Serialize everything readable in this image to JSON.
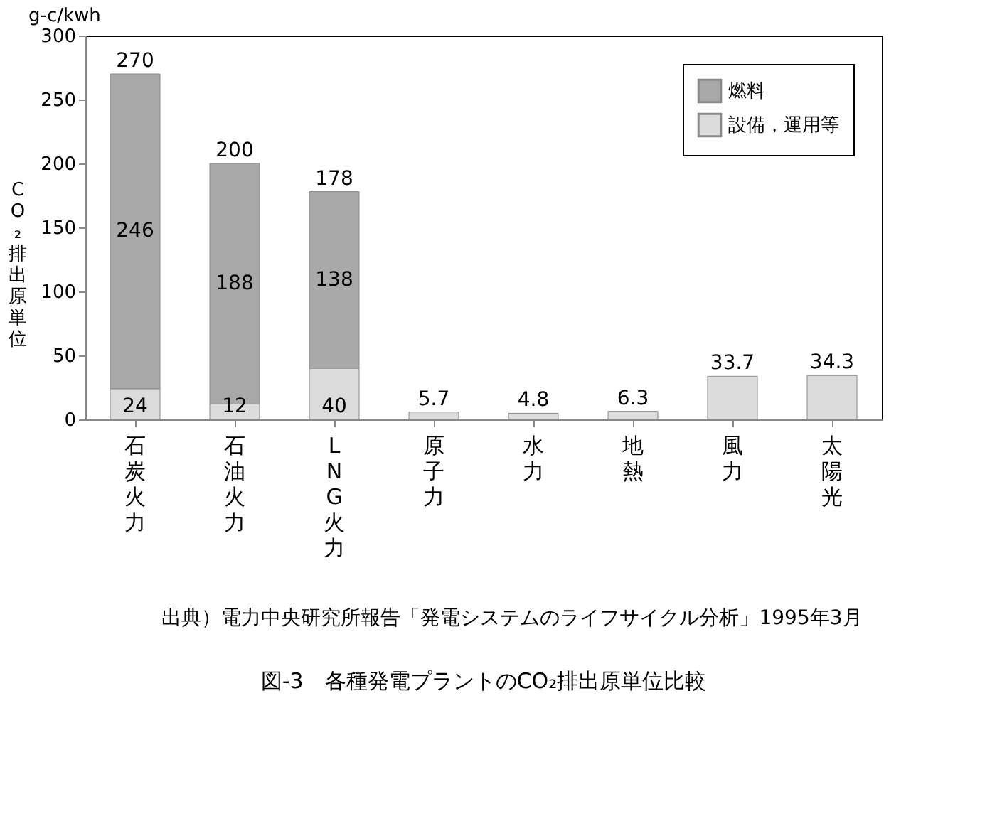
{
  "chart_data": {
    "type": "bar",
    "title": "図-3　各種発電プラントのCO₂排出原単位比較",
    "ylabel": "CO₂排出原単位",
    "annotations": [
      "g-c/kwh",
      "出典）電力中央研究所報告「発電システムのライフサイクル分析」1995年3月"
    ],
    "categories": [
      "石炭火力",
      "石油火力",
      "LNG火力",
      "原子力",
      "水力",
      "地熱",
      "風力",
      "太陽光"
    ],
    "stacked": true,
    "series": [
      {
        "name": "設備，運用等",
        "color": "#dcdcdc",
        "values": [
          24,
          12,
          40,
          5.7,
          4.8,
          6.3,
          33.7,
          34.3
        ],
        "value_labels": [
          "24",
          "12",
          "40",
          null,
          null,
          null,
          null,
          null
        ]
      },
      {
        "name": "燃料",
        "color": "#a9a9a9",
        "values": [
          246,
          188,
          138,
          null,
          null,
          null,
          null,
          null
        ],
        "value_labels": [
          "246",
          "188",
          "138",
          null,
          null,
          null,
          null,
          null
        ]
      }
    ],
    "totals": [
      "270",
      "200",
      "178",
      "5.7",
      "4.8",
      "6.3",
      "33.7",
      "34.3"
    ],
    "ylim": [
      0,
      300
    ],
    "yticks": [
      0,
      50,
      100,
      150,
      200,
      250,
      300
    ],
    "grid": false,
    "legend": "top right"
  }
}
